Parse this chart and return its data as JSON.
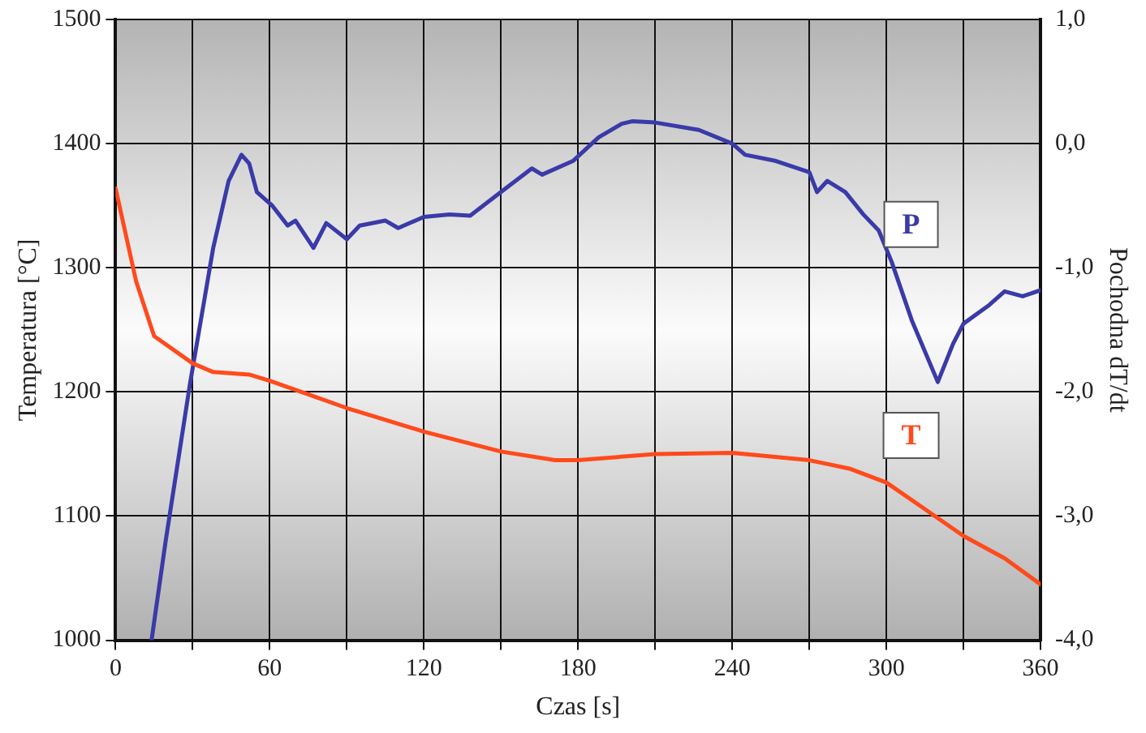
{
  "chart_data": {
    "type": "line",
    "xlabel": "Czas [s]",
    "ylabel": "Temperatura [°C]",
    "y2label": "Pochodna dT/dt",
    "xlim": [
      0,
      360
    ],
    "xticks": [
      0,
      {
        "value": 30,
        "label": null
      },
      60,
      {
        "value": 90,
        "label": null
      },
      120,
      {
        "value": 150,
        "label": null
      },
      180,
      {
        "value": 210,
        "label": null
      },
      240,
      {
        "value": 270,
        "label": null
      },
      300,
      {
        "value": 330,
        "label": null
      },
      360
    ],
    "ylim": [
      1000,
      1500
    ],
    "yticks": [
      1000,
      1100,
      1200,
      1300,
      1400,
      1500
    ],
    "y2lim": [
      -4,
      1
    ],
    "y2ticks": [
      {
        "value": -4,
        "label": "-4,0"
      },
      {
        "value": -3,
        "label": "-3,0"
      },
      {
        "value": -2,
        "label": "-2,0"
      },
      {
        "value": -1,
        "label": "-1,0"
      },
      {
        "value": 0,
        "label": "0,0"
      },
      {
        "value": 1,
        "label": "1,0"
      }
    ],
    "grid": true,
    "legend": false,
    "marker": "none",
    "line_style": "solid",
    "series": [
      {
        "name": "T",
        "color": "#ff4a1c",
        "x": [
          0,
          8,
          15,
          30,
          38,
          52,
          60,
          75,
          90,
          120,
          150,
          171,
          180,
          210,
          240,
          270,
          286,
          300,
          314,
          330,
          346,
          360
        ],
        "values": [
          1364,
          1289,
          1245,
          1223,
          1216,
          1214,
          1209,
          1198,
          1187,
          1168,
          1152,
          1145,
          1145,
          1150,
          1151,
          1145,
          1138,
          1127,
          1107,
          1084,
          1066,
          1045
        ]
      },
      {
        "name": "P",
        "color": "#3a3aa8",
        "axis": "y2",
        "x": [
          14,
          19.5,
          29,
          38,
          44,
          49,
          52,
          55,
          61,
          67,
          70,
          77,
          82,
          90,
          95,
          105,
          110,
          120,
          130,
          138,
          150,
          162,
          166,
          178,
          188,
          197,
          201,
          210,
          227,
          240,
          245,
          257,
          270,
          273,
          277,
          284,
          291,
          297,
          302,
          310,
          320,
          326,
          330,
          340,
          346,
          353,
          360
        ],
        "values": [
          -4.0,
          -3.2,
          -1.93,
          -0.84,
          -0.3,
          -0.09,
          -0.16,
          -0.39,
          -0.5,
          -0.66,
          -0.62,
          -0.84,
          -0.64,
          -0.77,
          -0.66,
          -0.62,
          -0.68,
          -0.59,
          -0.57,
          -0.58,
          -0.39,
          -0.2,
          -0.25,
          -0.14,
          0.05,
          0.16,
          0.18,
          0.17,
          0.11,
          0.0,
          -0.09,
          -0.14,
          -0.23,
          -0.39,
          -0.3,
          -0.39,
          -0.57,
          -0.7,
          -0.95,
          -1.43,
          -1.92,
          -1.61,
          -1.45,
          -1.3,
          -1.19,
          -1.23,
          -1.18
        ]
      }
    ]
  }
}
